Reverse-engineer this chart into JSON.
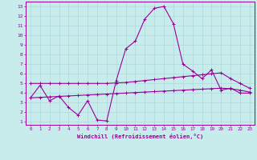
{
  "xlabel": "Windchill (Refroidissement éolien,°C)",
  "background_color": "#c8ecec",
  "grid_color": "#b0d8d8",
  "line_color": "#990099",
  "x_ticks": [
    0,
    1,
    2,
    3,
    4,
    5,
    6,
    7,
    8,
    9,
    10,
    11,
    12,
    13,
    14,
    15,
    16,
    17,
    18,
    19,
    20,
    21,
    22,
    23
  ],
  "y_ticks": [
    1,
    2,
    3,
    4,
    5,
    6,
    7,
    8,
    9,
    10,
    11,
    12,
    13
  ],
  "ylim": [
    0.7,
    13.5
  ],
  "xlim": [
    -0.5,
    23.5
  ],
  "main_line_x": [
    0,
    1,
    2,
    3,
    4,
    5,
    6,
    7,
    8,
    9,
    10,
    11,
    12,
    13,
    14,
    15,
    16,
    17,
    18,
    19,
    20,
    21,
    22,
    23
  ],
  "main_line_y": [
    3.5,
    4.8,
    3.2,
    3.7,
    2.5,
    1.7,
    3.2,
    1.2,
    1.1,
    5.3,
    8.6,
    9.4,
    11.7,
    12.8,
    13.0,
    11.2,
    7.0,
    6.3,
    5.5,
    6.4,
    4.3,
    4.5,
    4.0,
    4.0
  ],
  "upper_line_x": [
    0,
    1,
    2,
    3,
    4,
    5,
    6,
    7,
    8,
    9,
    10,
    11,
    12,
    13,
    14,
    15,
    16,
    17,
    18,
    19,
    20,
    21,
    22,
    23
  ],
  "upper_line_y": [
    5.0,
    5.0,
    5.0,
    5.0,
    5.0,
    5.0,
    5.0,
    5.0,
    5.0,
    5.05,
    5.1,
    5.2,
    5.3,
    5.4,
    5.5,
    5.6,
    5.7,
    5.8,
    5.9,
    6.0,
    6.1,
    5.5,
    5.0,
    4.5
  ],
  "lower_line_x": [
    0,
    1,
    2,
    3,
    4,
    5,
    6,
    7,
    8,
    9,
    10,
    11,
    12,
    13,
    14,
    15,
    16,
    17,
    18,
    19,
    20,
    21,
    22,
    23
  ],
  "lower_line_y": [
    3.5,
    3.55,
    3.6,
    3.65,
    3.7,
    3.75,
    3.8,
    3.85,
    3.9,
    3.95,
    4.0,
    4.05,
    4.1,
    4.15,
    4.2,
    4.25,
    4.3,
    4.35,
    4.4,
    4.45,
    4.5,
    4.45,
    4.3,
    4.1
  ]
}
